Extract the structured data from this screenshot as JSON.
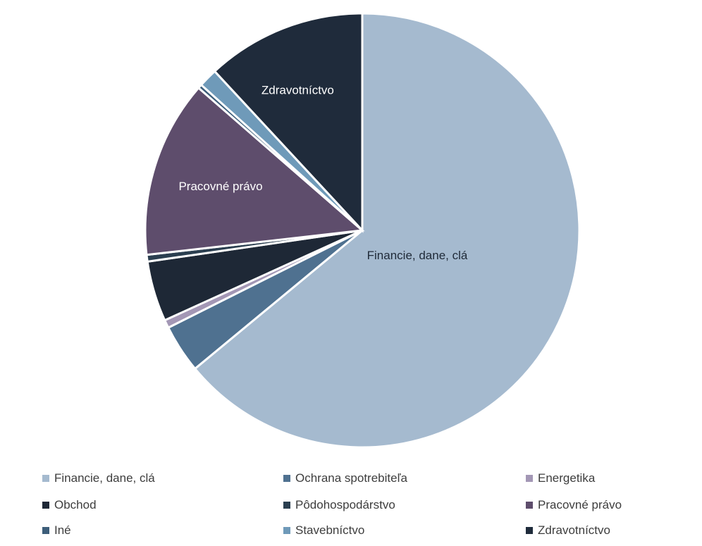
{
  "chart_data": {
    "type": "pie",
    "title": "",
    "categories": [
      "Financie, dane, clá",
      "Ochrana spotrebiteľa",
      "Energetika",
      "Obchod",
      "Pôdohospodárstvo",
      "Pracovné právo",
      "Iné",
      "Stavebníctvo",
      "Zdravotníctvo"
    ],
    "values": [
      64.0,
      3.6,
      0.6,
      4.5,
      0.5,
      13.2,
      0.3,
      1.4,
      11.9
    ],
    "unit": "%",
    "colors": [
      "#a5bacf",
      "#4f7190",
      "#a397b5",
      "#1e2836",
      "#2b3f50",
      "#5e4d6c",
      "#3d5e7a",
      "#6f9ab9",
      "#1f2b3b"
    ],
    "slice_labels": [
      "Financie, dane, clá",
      "",
      "",
      "",
      "",
      "Pracovné právo",
      "",
      "",
      "Zdravotníctvo"
    ],
    "start_angle_deg": 0,
    "direction": "clockwise",
    "legend_position": "bottom",
    "legend_columns": 3
  }
}
